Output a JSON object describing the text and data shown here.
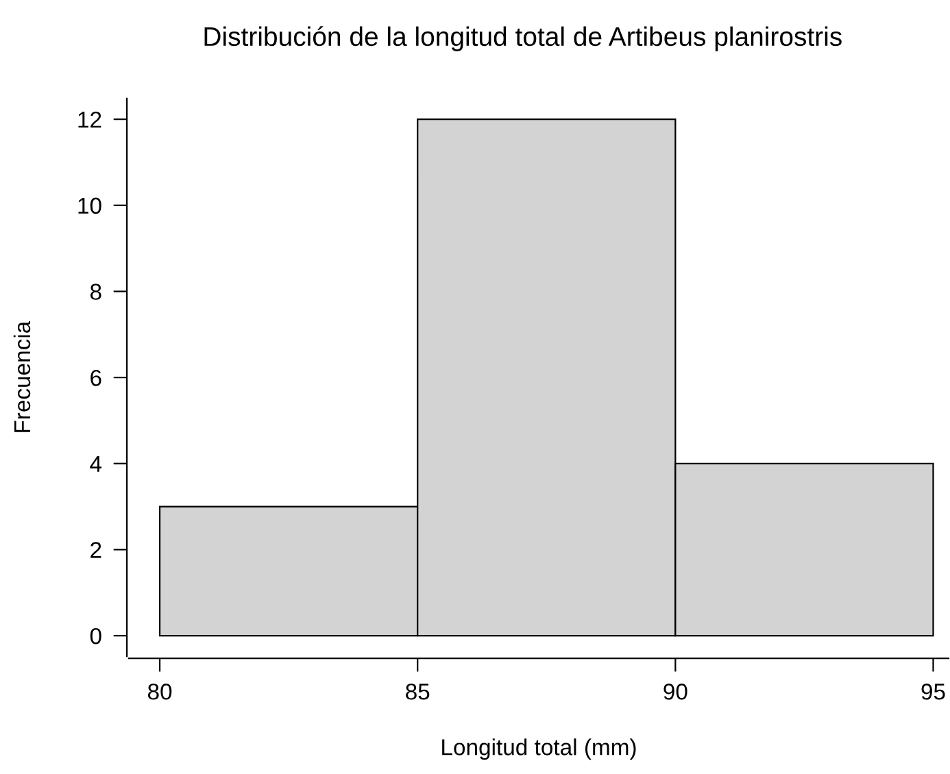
{
  "chart_data": {
    "type": "histogram",
    "title": "Distribución de la longitud total de Artibeus planirostris",
    "xlabel": "Longitud total (mm)",
    "ylabel": "Frecuencia",
    "bins": [
      80,
      85,
      90,
      95
    ],
    "values": [
      3,
      12,
      4
    ],
    "color": "#d3d3d3",
    "xlim": [
      79.4,
      95.3
    ],
    "xticks": [
      80,
      85,
      90,
      95
    ],
    "ylim": [
      -0.48,
      12.48
    ],
    "yticks": [
      0,
      2,
      4,
      6,
      8,
      10,
      12
    ],
    "grid": false
  }
}
